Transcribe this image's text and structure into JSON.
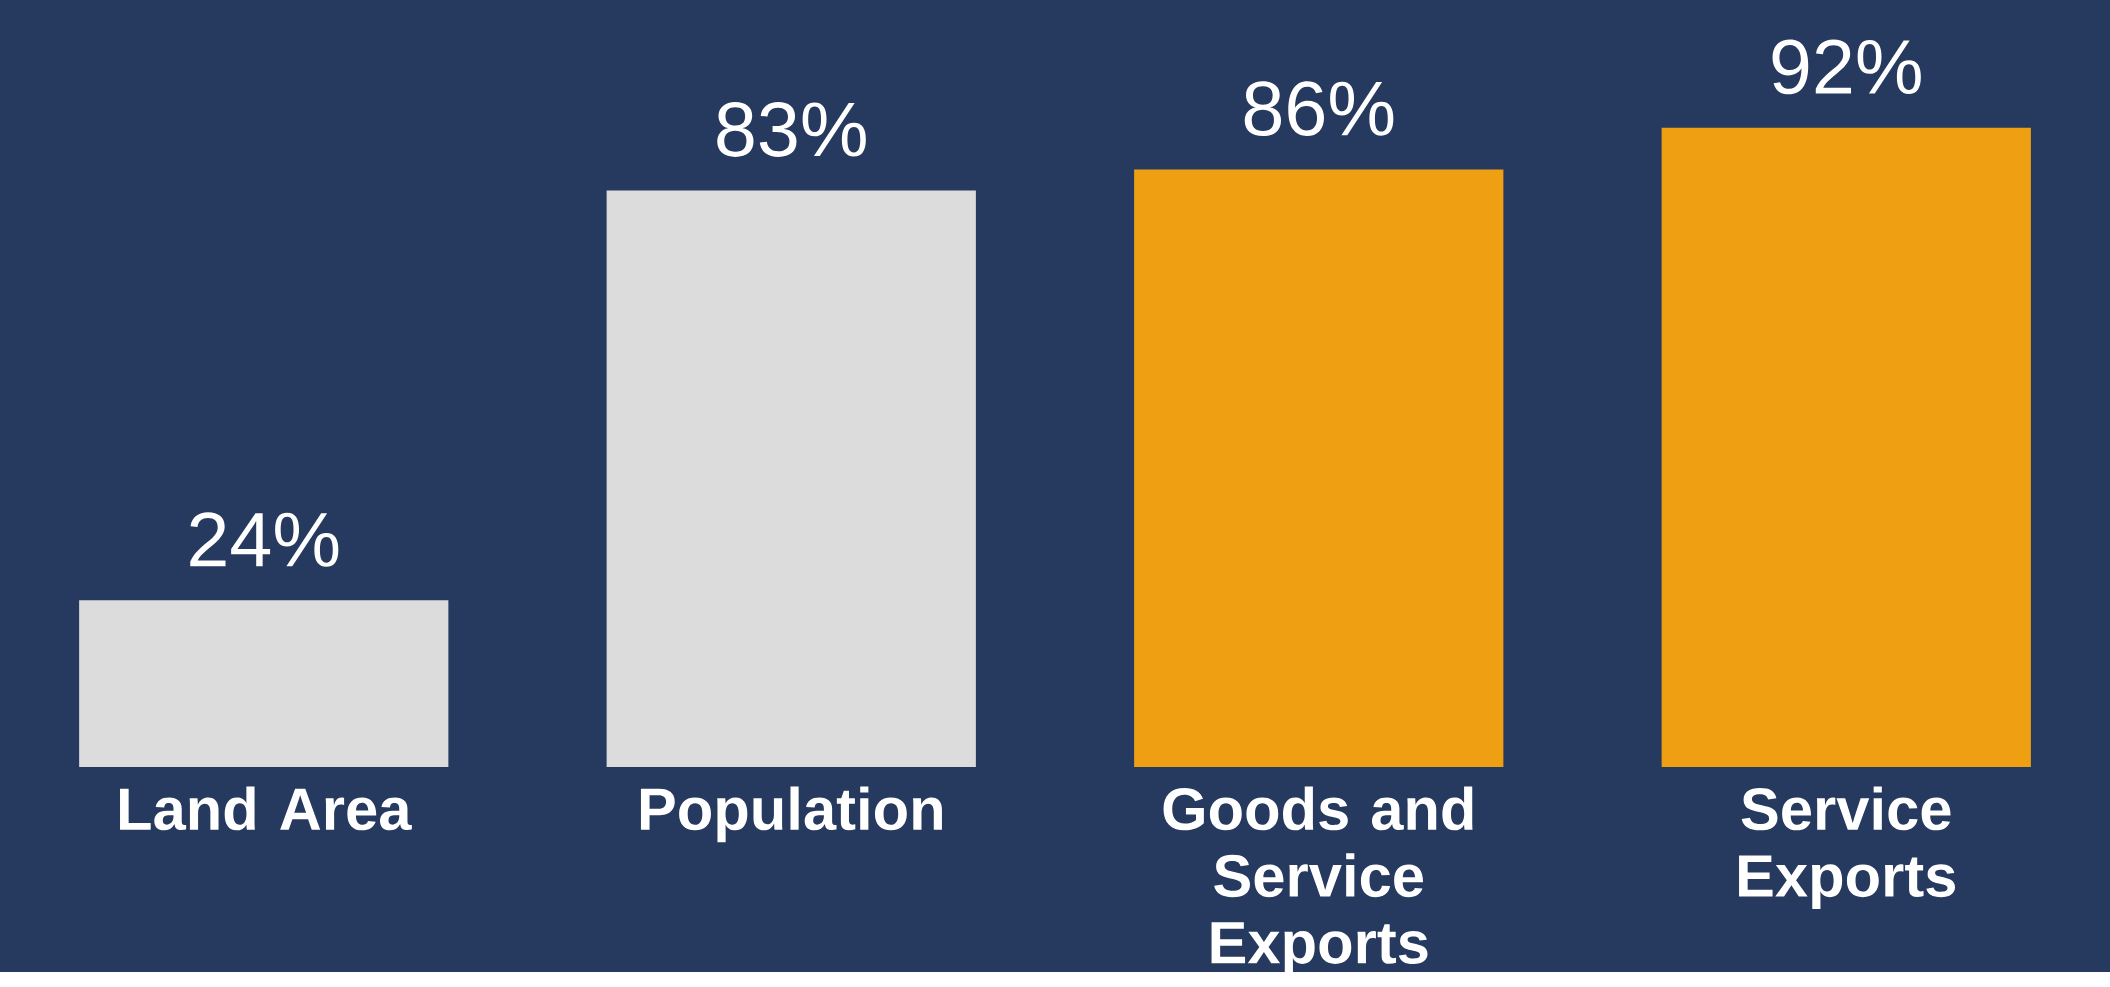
{
  "chart_data": {
    "type": "bar",
    "categories": [
      "Land Area",
      "Population",
      "Goods and Service Exports",
      "Service Exports"
    ],
    "values": [
      24,
      83,
      86,
      92
    ],
    "value_labels": [
      "24%",
      "83%",
      "86%",
      "92%"
    ],
    "colors": [
      "#dcdcdc",
      "#dcdcdc",
      "#eea012",
      "#eea012"
    ]
  }
}
